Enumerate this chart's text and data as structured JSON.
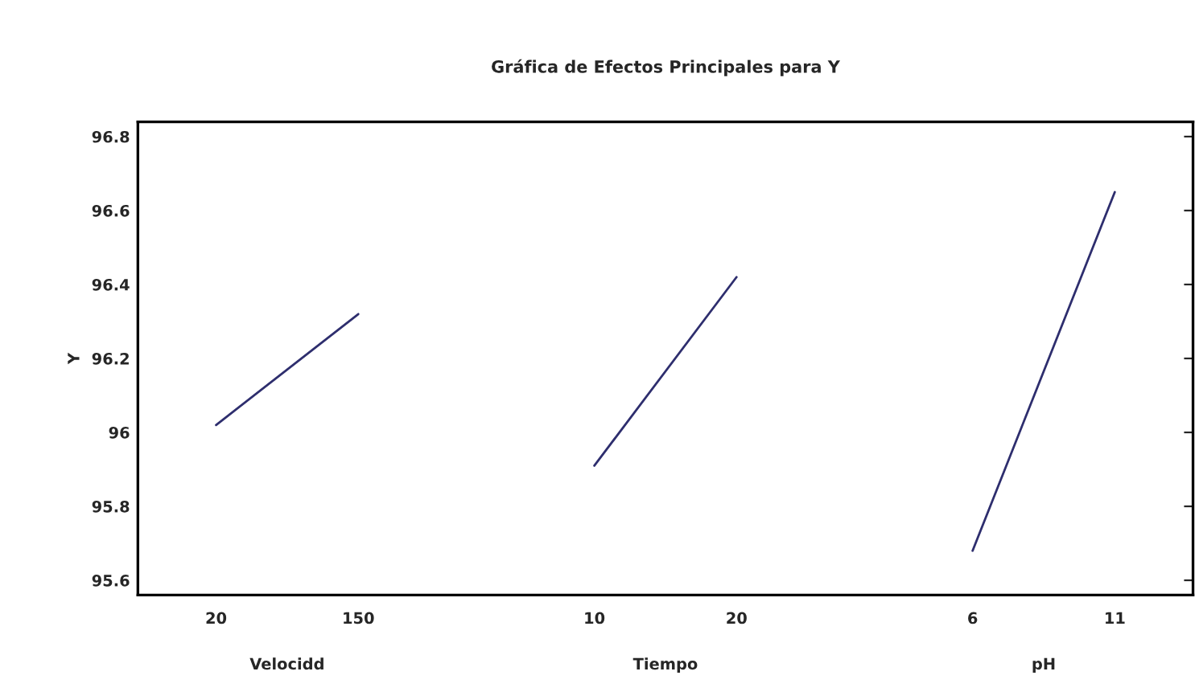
{
  "chart_data": {
    "type": "line",
    "title": "Gráfica de Efectos Principales para Y",
    "ylabel": "Y",
    "categories": [
      "20",
      "150",
      "10",
      "20",
      "6",
      "11"
    ],
    "series": [
      {
        "color": "#2e2e6e",
        "values": [
          96.02,
          96.32,
          null,
          null,
          null,
          null
        ]
      },
      {
        "color": "#2e2e6e",
        "values": [
          null,
          null,
          95.91,
          96.42,
          null,
          null
        ]
      },
      {
        "color": "#2e2e6e",
        "values": [
          null,
          null,
          null,
          null,
          95.68,
          96.65
        ]
      }
    ],
    "annotations": [
      "Velocidd",
      "Tiempo",
      "pH"
    ],
    "ylim": [
      95.56,
      96.84
    ],
    "yticks": [
      95.6,
      95.8,
      96,
      96.2,
      96.4,
      96.6,
      96.8
    ],
    "grid": false,
    "legend": false,
    "marker": "none",
    "line_style": "solid"
  }
}
